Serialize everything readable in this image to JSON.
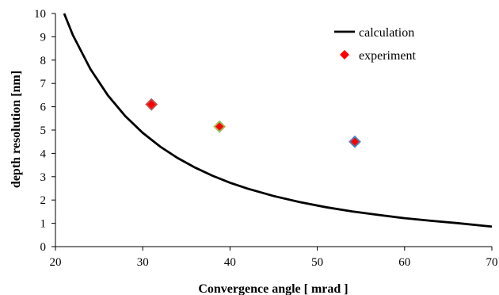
{
  "chart_data": {
    "type": "scatter",
    "title": "",
    "xlabel": "Convergence angle [ mrad ]",
    "ylabel": "depth resolution [nm]",
    "xlim": [
      20,
      70
    ],
    "ylim": [
      0,
      10
    ],
    "x_ticks": [
      "20",
      "30",
      "40",
      "50",
      "60",
      "70"
    ],
    "y_ticks": [
      "0",
      "1",
      "2",
      "3",
      "4",
      "5",
      "6",
      "7",
      "8",
      "9",
      "10"
    ],
    "grid": false,
    "legend_position": "top-right",
    "series": [
      {
        "name": "calculation",
        "kind": "line",
        "color": "#000000",
        "x": [
          21,
          22,
          24,
          26,
          28,
          30,
          32,
          34,
          36,
          38,
          40,
          42,
          45,
          48,
          51,
          54,
          57,
          60,
          63,
          66,
          70
        ],
        "y": [
          10,
          9.07,
          7.62,
          6.49,
          5.6,
          4.88,
          4.29,
          3.8,
          3.39,
          3.04,
          2.74,
          2.49,
          2.17,
          1.91,
          1.69,
          1.51,
          1.36,
          1.22,
          1.11,
          1.01,
          0.86
        ]
      },
      {
        "name": "experiment",
        "kind": "marker",
        "marker": "diamond",
        "color": "#ff0000",
        "x": [
          31,
          38.8,
          54.3
        ],
        "y": [
          6.1,
          5.15,
          4.5
        ],
        "outline_colors": [
          "#c0504d",
          "#9bbb59",
          "#4f81bd"
        ]
      }
    ]
  }
}
